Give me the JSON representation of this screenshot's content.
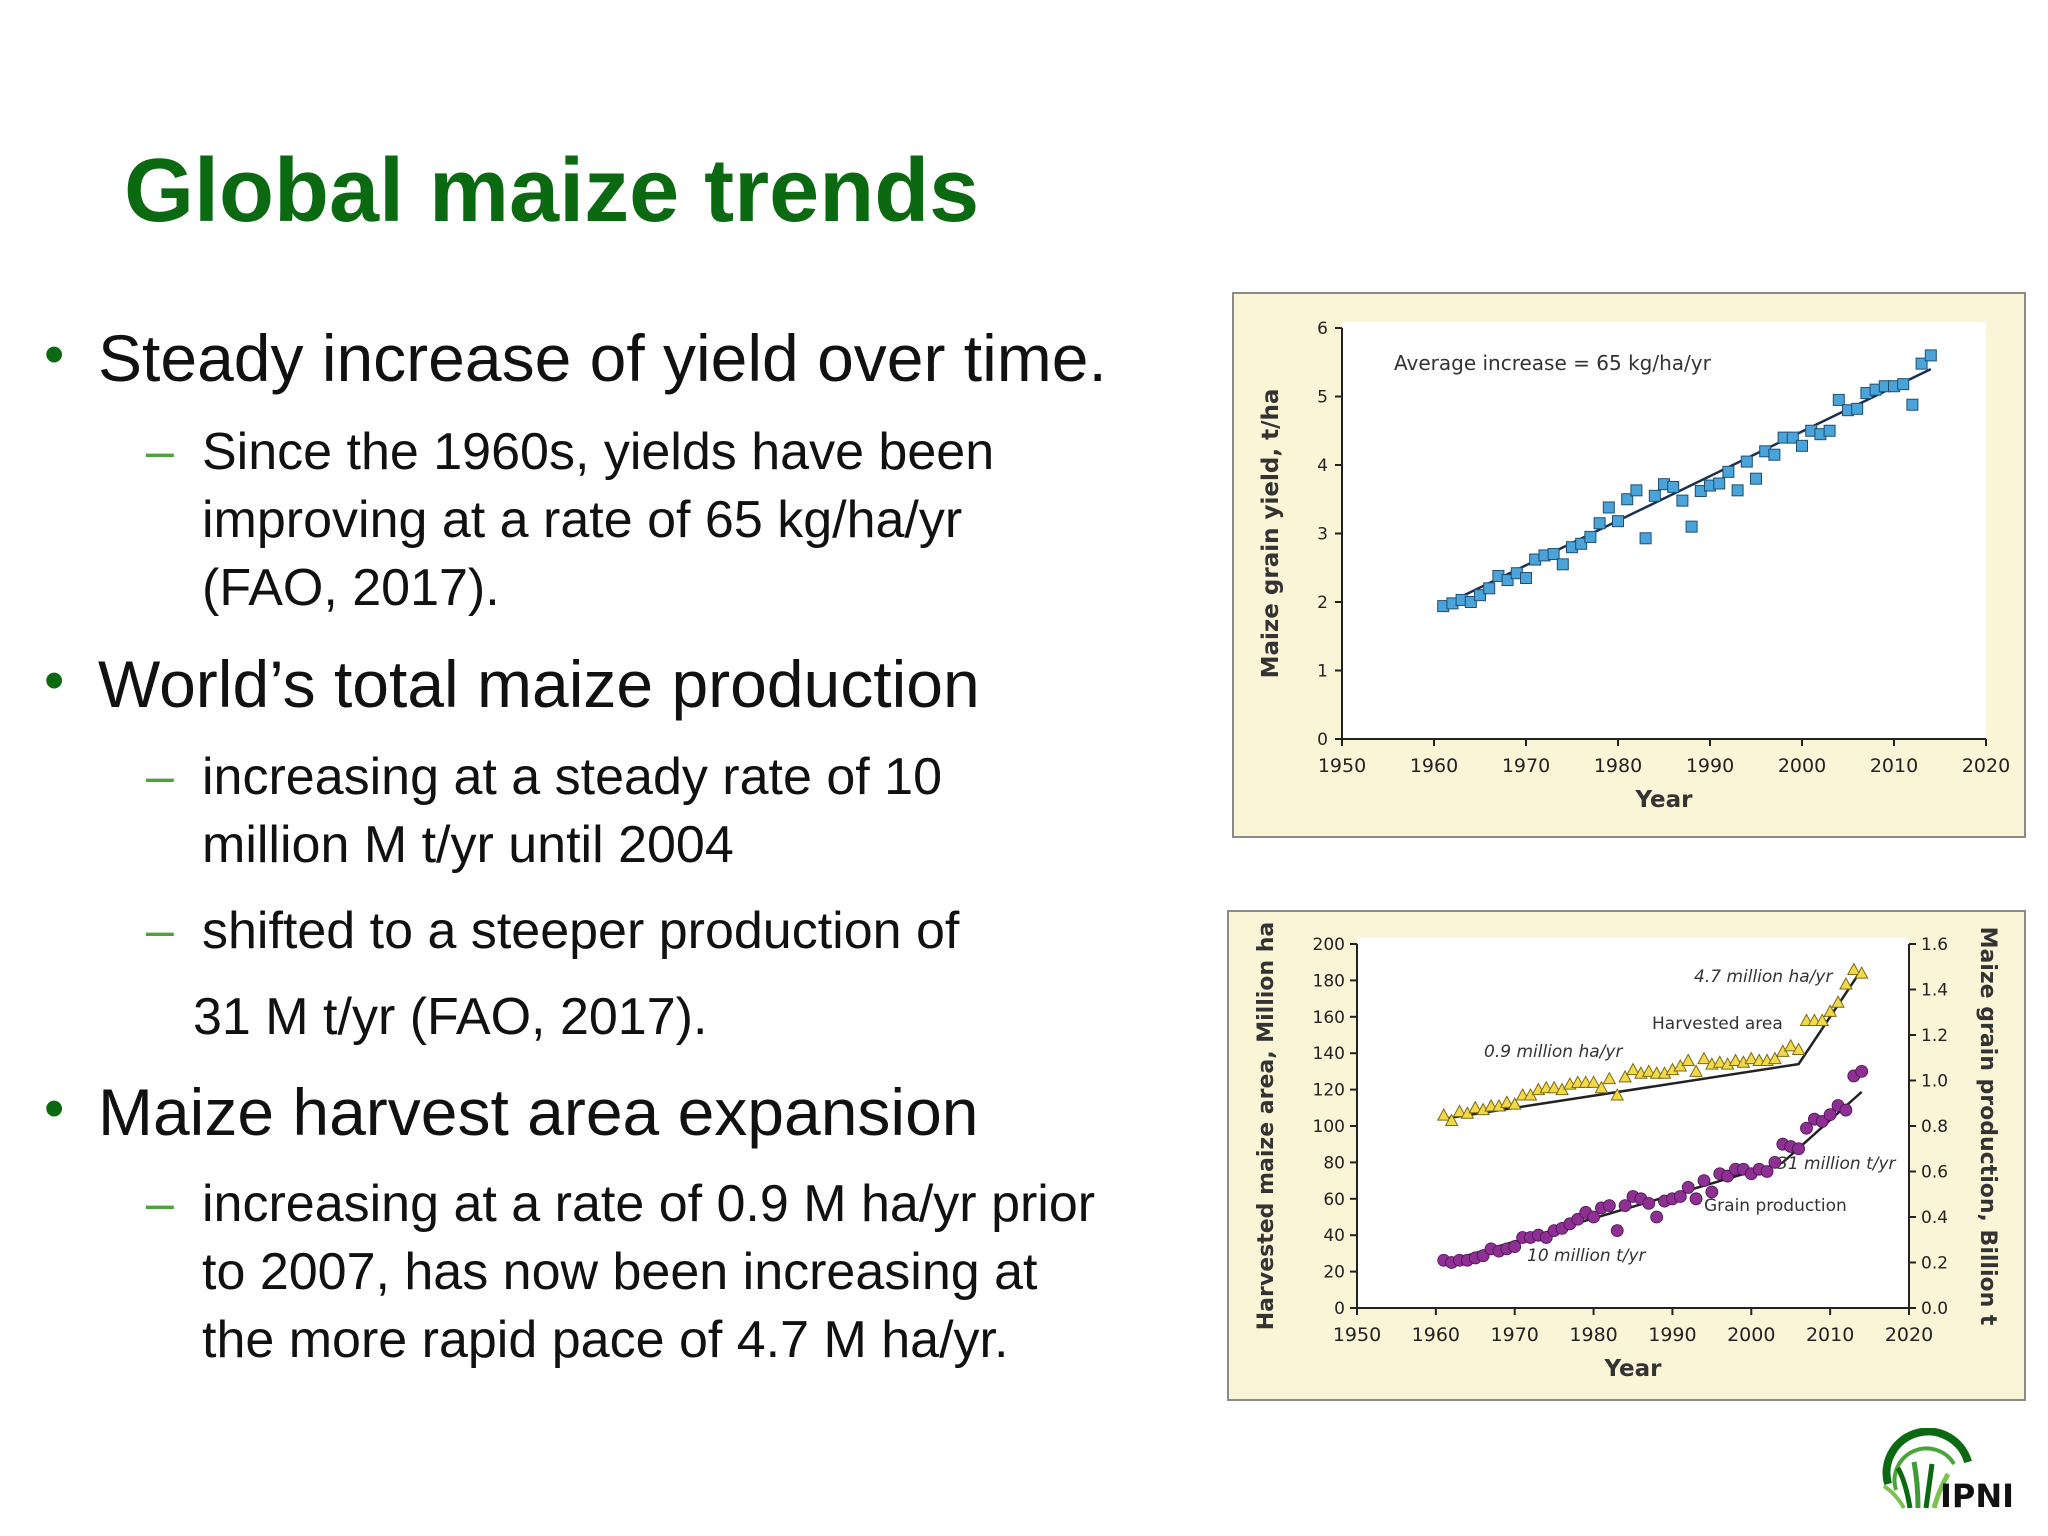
{
  "slide": {
    "title": "Global maize trends",
    "bullets": [
      {
        "text": "Steady increase of yield over time.",
        "subs": [
          {
            "lines": [
              "Since the 1960s, yields have been",
              "improving at a rate of 65 kg/ha/yr",
              "(FAO, 2017)."
            ]
          }
        ]
      },
      {
        "text": "World’s total maize production",
        "subs": [
          {
            "lines": [
              "increasing at a steady rate of 10",
              "million M t/yr until 2004"
            ]
          },
          {
            "lines": [
              "shifted to a steeper production of"
            ],
            "continuation": "31 M t/yr (FAO, 2017)."
          }
        ]
      },
      {
        "text": "Maize harvest area expansion",
        "subs": [
          {
            "lines": [
              "increasing at a rate of 0.9 M ha/yr prior",
              "to 2007, has now been increasing at",
              "the more rapid pace of 4.7 M ha/yr."
            ]
          }
        ]
      }
    ],
    "logo_text": "IPNI"
  },
  "colors": {
    "title": "#0b6a11",
    "dash": "#4aa43a",
    "panel_bg": "#fbf5d8",
    "yield_marker": "#4aa3d9",
    "area_marker": "#f3d94a",
    "production_marker": "#8d2f93"
  },
  "chart_data": [
    {
      "type": "scatter",
      "xlabel": "Year",
      "ylabel": "Maize grain yield, t/ha",
      "xlim": [
        1950,
        2020
      ],
      "ylim": [
        0,
        6
      ],
      "xticks": [
        "1950",
        "1960",
        "1970",
        "1980",
        "1990",
        "2000",
        "2010",
        "2020"
      ],
      "yticks": [
        "0",
        "1",
        "2",
        "3",
        "4",
        "5",
        "6"
      ],
      "annotation": "Average increase = 65 kg/ha/yr",
      "trend": {
        "x": [
          1961,
          2014
        ],
        "y": [
          1.95,
          5.4
        ]
      },
      "series": [
        {
          "marker": "square",
          "x": [
            1961,
            1962,
            1963,
            1964,
            1965,
            1966,
            1967,
            1968,
            1969,
            1970,
            1971,
            1972,
            1973,
            1974,
            1975,
            1976,
            1977,
            1978,
            1979,
            1980,
            1981,
            1982,
            1983,
            1984,
            1985,
            1986,
            1987,
            1988,
            1989,
            1990,
            1991,
            1992,
            1993,
            1994,
            1995,
            1996,
            1997,
            1998,
            1999,
            2000,
            2001,
            2002,
            2003,
            2004,
            2005,
            2006,
            2007,
            2008,
            2009,
            2010,
            2011,
            2012,
            2013,
            2014
          ],
          "y": [
            1.94,
            1.98,
            2.03,
            2.0,
            2.1,
            2.2,
            2.38,
            2.32,
            2.42,
            2.35,
            2.62,
            2.68,
            2.7,
            2.55,
            2.8,
            2.85,
            2.95,
            3.15,
            3.38,
            3.18,
            3.5,
            3.63,
            2.93,
            3.55,
            3.72,
            3.68,
            3.48,
            3.1,
            3.62,
            3.7,
            3.73,
            3.9,
            3.63,
            4.05,
            3.8,
            4.2,
            4.15,
            4.4,
            4.4,
            4.28,
            4.5,
            4.45,
            4.5,
            4.95,
            4.8,
            4.82,
            5.05,
            5.1,
            5.15,
            5.15,
            5.18,
            4.88,
            5.48,
            5.6
          ]
        }
      ]
    },
    {
      "type": "scatter",
      "xlabel": "Year",
      "ylabel": "Harvested maize area, Million ha",
      "y2label": "Maize grain production, Billion t",
      "xlim": [
        1950,
        2020
      ],
      "ylim": [
        0,
        200
      ],
      "y2lim": [
        0,
        1.6
      ],
      "xticks": [
        "1950",
        "1960",
        "1970",
        "1980",
        "1990",
        "2000",
        "2010",
        "2020"
      ],
      "yticks": [
        "0",
        "20",
        "40",
        "60",
        "80",
        "100",
        "120",
        "140",
        "160",
        "180",
        "200"
      ],
      "y2ticks": [
        "0.0",
        "0.2",
        "0.4",
        "0.6",
        "0.8",
        "1.0",
        "1.2",
        "1.4",
        "1.6"
      ],
      "annotations": [
        "4.7 million ha/yr",
        "Harvested area",
        "0.9 million ha/yr",
        "31 million t/yr",
        "Grain production",
        "10 million t/yr"
      ],
      "series": [
        {
          "name": "Harvested area",
          "axis": "left",
          "marker": "triangle",
          "x": [
            1961,
            1962,
            1963,
            1964,
            1965,
            1966,
            1967,
            1968,
            1969,
            1970,
            1971,
            1972,
            1973,
            1974,
            1975,
            1976,
            1977,
            1978,
            1979,
            1980,
            1981,
            1982,
            1983,
            1984,
            1985,
            1986,
            1987,
            1988,
            1989,
            1990,
            1991,
            1992,
            1993,
            1994,
            1995,
            1996,
            1997,
            1998,
            1999,
            2000,
            2001,
            2002,
            2003,
            2004,
            2005,
            2006,
            2007,
            2008,
            2009,
            2010,
            2011,
            2012,
            2013,
            2014
          ],
          "y": [
            106,
            103,
            108,
            107,
            110,
            109,
            111,
            111,
            113,
            112,
            117,
            117,
            120,
            121,
            121,
            120,
            123,
            124,
            124,
            124,
            121,
            126,
            117,
            127,
            131,
            129,
            130,
            129,
            129,
            131,
            133,
            136,
            130,
            137,
            134,
            135,
            134,
            136,
            135,
            137,
            136,
            136,
            137,
            141,
            144,
            142,
            158,
            158,
            158,
            163,
            168,
            178,
            186,
            184
          ],
          "trend": {
            "x": [
              1961,
              2006,
              2014
            ],
            "y": [
              104,
              134,
              186
            ]
          }
        },
        {
          "name": "Grain production",
          "axis": "right",
          "marker": "circle",
          "x": [
            1961,
            1962,
            1963,
            1964,
            1965,
            1966,
            1967,
            1968,
            1969,
            1970,
            1971,
            1972,
            1973,
            1974,
            1975,
            1976,
            1977,
            1978,
            1979,
            1980,
            1981,
            1982,
            1983,
            1984,
            1985,
            1986,
            1987,
            1988,
            1989,
            1990,
            1991,
            1992,
            1993,
            1994,
            1995,
            1996,
            1997,
            1998,
            1999,
            2000,
            2001,
            2002,
            2003,
            2004,
            2005,
            2006,
            2007,
            2008,
            2009,
            2010,
            2011,
            2012,
            2013,
            2014
          ],
          "y": [
            0.21,
            0.2,
            0.21,
            0.21,
            0.22,
            0.23,
            0.26,
            0.25,
            0.26,
            0.27,
            0.31,
            0.31,
            0.32,
            0.31,
            0.34,
            0.35,
            0.37,
            0.39,
            0.42,
            0.4,
            0.44,
            0.45,
            0.34,
            0.45,
            0.49,
            0.48,
            0.46,
            0.4,
            0.47,
            0.48,
            0.49,
            0.53,
            0.48,
            0.56,
            0.51,
            0.59,
            0.58,
            0.61,
            0.61,
            0.59,
            0.61,
            0.6,
            0.64,
            0.72,
            0.71,
            0.7,
            0.79,
            0.83,
            0.82,
            0.85,
            0.89,
            0.87,
            1.02,
            1.04
          ],
          "trend": {
            "x": [
              1961,
              2004,
              2014
            ],
            "y": [
              0.2,
              0.64,
              0.95
            ]
          }
        }
      ]
    }
  ]
}
